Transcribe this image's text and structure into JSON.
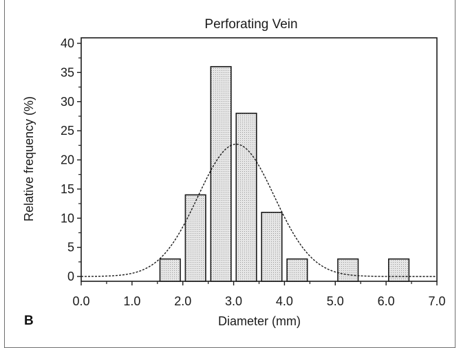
{
  "panel_label": "B",
  "chart_data": {
    "type": "bar",
    "title": "Perforating Vein",
    "xlabel": "Diameter (mm)",
    "ylabel": "Relative frequency (%)",
    "xlim": [
      0.0,
      7.0
    ],
    "ylim": [
      0,
      40
    ],
    "x_ticks": [
      "0.0",
      "1.0",
      "2.0",
      "3.0",
      "4.0",
      "5.0",
      "6.0",
      "7.0"
    ],
    "y_ticks": [
      "0",
      "5",
      "10",
      "15",
      "20",
      "25",
      "30",
      "35",
      "40"
    ],
    "bin_width": 0.4,
    "bins": [
      {
        "x": 1.75,
        "value": 3
      },
      {
        "x": 2.25,
        "value": 14
      },
      {
        "x": 2.75,
        "value": 36
      },
      {
        "x": 3.25,
        "value": 28
      },
      {
        "x": 3.75,
        "value": 11
      },
      {
        "x": 4.25,
        "value": 3
      },
      {
        "x": 5.25,
        "value": 3
      },
      {
        "x": 6.25,
        "value": 3
      }
    ],
    "fit_curve": {
      "type": "normal",
      "style": "dashed",
      "mean": 3.05,
      "sd": 0.75,
      "peak": 22.7
    },
    "bar_fill": "#dcdcdc",
    "bar_edge": "#1a1a1a"
  }
}
